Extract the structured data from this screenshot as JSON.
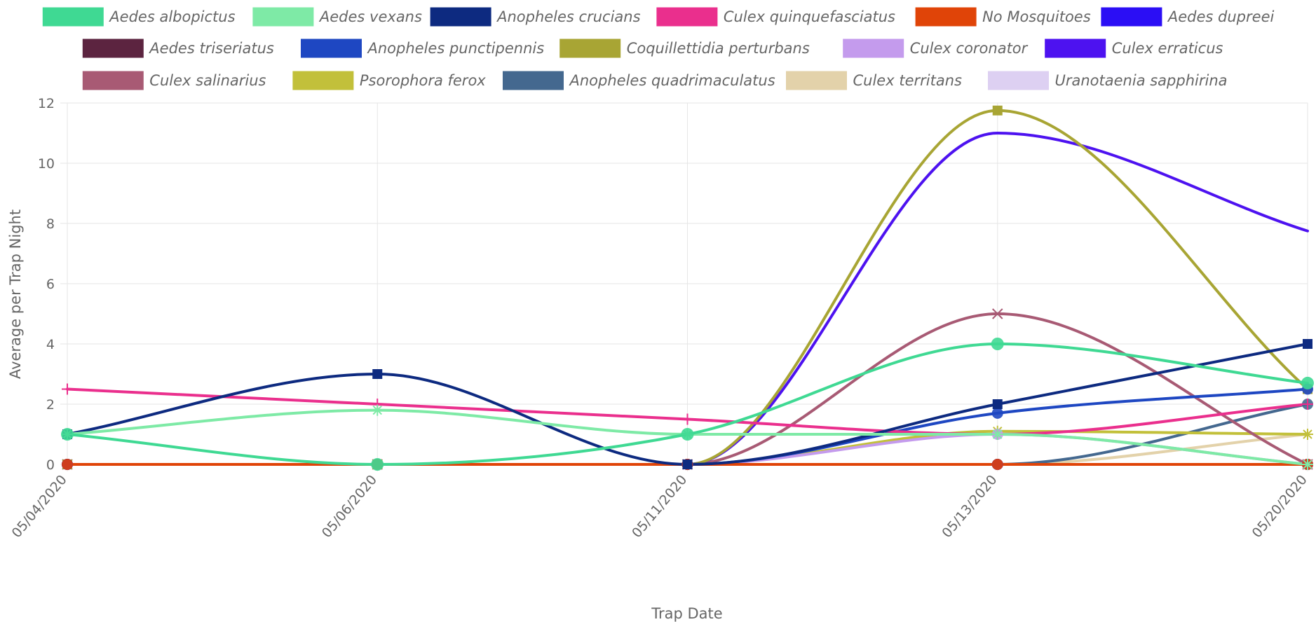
{
  "chart_data": {
    "type": "line",
    "xlabel": "Trap Date",
    "ylabel": "Average per Trap Night",
    "ylim": [
      0,
      12
    ],
    "y_ticks": [
      0,
      2,
      4,
      6,
      8,
      10,
      12
    ],
    "grid": true,
    "legend_position": "top",
    "categories": [
      "05/04/2020",
      "05/06/2020",
      "05/11/2020",
      "05/13/2020",
      "05/20/2020"
    ],
    "series": [
      {
        "name": "Aedes albopictus",
        "color": "#3fd993",
        "marker": "circle",
        "values": [
          1,
          0,
          1,
          4,
          2.7
        ]
      },
      {
        "name": "Aedes vexans",
        "color": "#7eeaa6",
        "marker": "star",
        "values": [
          1,
          1.8,
          1,
          1,
          0
        ]
      },
      {
        "name": "Anopheles crucians",
        "color": "#0d2a80",
        "marker": "square",
        "values": [
          1,
          3,
          0,
          2,
          4
        ]
      },
      {
        "name": "Culex quinquefasciatus",
        "color": "#ea2f8d",
        "marker": "cross",
        "values": [
          2.5,
          2,
          1.5,
          1,
          2
        ]
      },
      {
        "name": "No Mosquitoes",
        "color": "#e04408",
        "marker": "circle",
        "values": [
          0,
          0,
          0,
          0,
          0
        ]
      },
      {
        "name": "Aedes dupreei",
        "color": "#2b0ef5",
        "marker": "circle",
        "values": [
          0,
          0,
          0,
          0,
          0
        ]
      },
      {
        "name": "Aedes triseriatus",
        "color": "#5c2440",
        "marker": "circle",
        "values": [
          0,
          0,
          0,
          0,
          0
        ]
      },
      {
        "name": "Anopheles punctipennis",
        "color": "#1e47c2",
        "marker": "circle",
        "values": [
          0,
          0,
          0,
          1.7,
          2.5
        ]
      },
      {
        "name": "Coquillettidia perturbans",
        "color": "#a8a534",
        "marker": "square",
        "values": [
          0,
          0,
          0,
          11.75,
          2.5
        ]
      },
      {
        "name": "Culex coronator",
        "color": "#c49bed",
        "marker": "circle",
        "values": [
          0,
          0,
          0,
          1,
          0
        ]
      },
      {
        "name": "Culex erraticus",
        "color": "#4d12f0",
        "marker": "none",
        "values": [
          0,
          0,
          0,
          11,
          7.75
        ]
      },
      {
        "name": "Culex salinarius",
        "color": "#a85a74",
        "marker": "x",
        "values": [
          0,
          0,
          0,
          5,
          0
        ]
      },
      {
        "name": "Psorophora ferox",
        "color": "#c2c03a",
        "marker": "star",
        "values": [
          0,
          0,
          0,
          1.1,
          1
        ]
      },
      {
        "name": "Anopheles quadrimaculatus",
        "color": "#44688f",
        "marker": "circle",
        "values": [
          0,
          0,
          0,
          0,
          2
        ]
      },
      {
        "name": "Culex territans",
        "color": "#e3d2aa",
        "marker": "none",
        "values": [
          0,
          0,
          0,
          0,
          1
        ]
      },
      {
        "name": "Uranotaenia sapphirina",
        "color": "#ddd0f2",
        "marker": "circle",
        "values": [
          0,
          0,
          0,
          0,
          0
        ]
      }
    ]
  }
}
